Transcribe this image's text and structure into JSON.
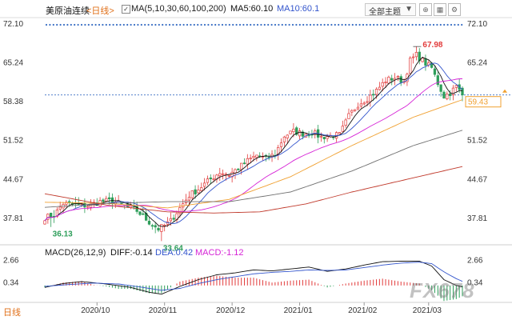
{
  "header": {
    "title": "美原油连续",
    "period_tab": "<日线>",
    "ma_label": "MA(5,10,30,60,100,200)",
    "ma5": "MA5:60.10",
    "ma10": "MA10:60.1",
    "theme_button": "全部主题",
    "check_mark": "✓"
  },
  "macd_header": {
    "label": "MACD(26,12,9)",
    "diff": "DIFF:-0.14",
    "dea": "DEA:0.42",
    "macd": "MACD:-1.12"
  },
  "bottom_tab": "日线",
  "watermark": "FX678",
  "colors": {
    "up": "#e23b3b",
    "down": "#2e9e5a",
    "ma5": "#111111",
    "ma10": "#3355cc",
    "ma30": "#d624d6",
    "ma60": "#f0a030",
    "ma100": "#707070",
    "ma200": "#c0392b",
    "diff": "#111111",
    "dea": "#3355cc",
    "price_tag": "#f0a030"
  },
  "chart_data": {
    "type": "candlestick",
    "y_ticks": [
      "72.10",
      "65.24",
      "58.38",
      "51.52",
      "44.67",
      "37.81"
    ],
    "y_tick_values": [
      72.1,
      65.24,
      58.38,
      51.52,
      44.67,
      37.81
    ],
    "ylim": [
      34.4,
      72.8
    ],
    "x_ticks": [
      "2020/10",
      "2020/11",
      "2020/12",
      "2021/01",
      "2021/02",
      "2021/03"
    ],
    "x_tick_index": [
      17,
      39,
      61,
      83,
      104,
      125
    ],
    "current_price": "59.43",
    "current_value": 59.43,
    "annotations": [
      {
        "label": "67.98",
        "value": 67.98,
        "index": 121
      },
      {
        "label": "36.13",
        "value": 36.13,
        "index": 2
      },
      {
        "label": "33.64",
        "value": 33.64,
        "index": 38
      }
    ],
    "close_path": [
      [
        0,
        37.8
      ],
      [
        3,
        38.2
      ],
      [
        6,
        40.3
      ],
      [
        10,
        40.0
      ],
      [
        14,
        39.9
      ],
      [
        18,
        40.6
      ],
      [
        22,
        40.8
      ],
      [
        26,
        39.8
      ],
      [
        30,
        39.0
      ],
      [
        34,
        37.0
      ],
      [
        37,
        35.8
      ],
      [
        39,
        36.4
      ],
      [
        41,
        37.2
      ],
      [
        44,
        39.5
      ],
      [
        47,
        41.7
      ],
      [
        50,
        42.8
      ],
      [
        54,
        44.6
      ],
      [
        57,
        45.8
      ],
      [
        60,
        45.4
      ],
      [
        63,
        46.5
      ],
      [
        66,
        47.8
      ],
      [
        69,
        48.8
      ],
      [
        72,
        48.2
      ],
      [
        75,
        49.0
      ],
      [
        78,
        52.2
      ],
      [
        81,
        53.0
      ],
      [
        84,
        52.6
      ],
      [
        87,
        52.8
      ],
      [
        90,
        52.0
      ],
      [
        93,
        52.2
      ],
      [
        96,
        52.4
      ],
      [
        99,
        55.7
      ],
      [
        102,
        57.8
      ],
      [
        105,
        58.8
      ],
      [
        108,
        60.2
      ],
      [
        111,
        62.0
      ],
      [
        114,
        62.5
      ],
      [
        117,
        61.8
      ],
      [
        119,
        65.5
      ],
      [
        121,
        66.5
      ],
      [
        124,
        65.0
      ],
      [
        126,
        64.2
      ],
      [
        128,
        61.5
      ],
      [
        130,
        59.2
      ],
      [
        132,
        59.8
      ],
      [
        134,
        60.9
      ],
      [
        136,
        59.43
      ]
    ],
    "ma_series": [
      {
        "key": "ma60",
        "points": [
          [
            0,
            40.5
          ],
          [
            20,
            40.3
          ],
          [
            40,
            39.5
          ],
          [
            60,
            41.0
          ],
          [
            80,
            45.0
          ],
          [
            100,
            50.5
          ],
          [
            120,
            55.5
          ],
          [
            136,
            58.6
          ]
        ]
      },
      {
        "key": "ma100",
        "points": [
          [
            0,
            39.6
          ],
          [
            20,
            40.3
          ],
          [
            40,
            40.6
          ],
          [
            60,
            40.6
          ],
          [
            80,
            42.3
          ],
          [
            100,
            46.0
          ],
          [
            120,
            50.5
          ],
          [
            136,
            53.2
          ]
        ]
      },
      {
        "key": "ma200",
        "points": [
          [
            0,
            42.0
          ],
          [
            20,
            40.0
          ],
          [
            40,
            38.8
          ],
          [
            55,
            38.6
          ],
          [
            70,
            38.8
          ],
          [
            85,
            40.2
          ],
          [
            100,
            42.3
          ],
          [
            120,
            44.8
          ],
          [
            136,
            46.8
          ]
        ]
      }
    ],
    "macd_ticks": [
      "2.66",
      "0.34"
    ],
    "macd_tick_values": [
      2.66,
      0.34
    ],
    "macd_ylim": [
      -1.25,
      3.2
    ],
    "macd_diff_path": [
      [
        0,
        -0.2
      ],
      [
        6,
        0.2
      ],
      [
        12,
        0.4
      ],
      [
        20,
        0.15
      ],
      [
        28,
        -0.2
      ],
      [
        34,
        -0.7
      ],
      [
        38,
        -0.9
      ],
      [
        44,
        -0.1
      ],
      [
        50,
        0.6
      ],
      [
        56,
        1.1
      ],
      [
        62,
        1.3
      ],
      [
        68,
        1.6
      ],
      [
        74,
        1.5
      ],
      [
        80,
        1.7
      ],
      [
        86,
        1.9
      ],
      [
        92,
        1.45
      ],
      [
        98,
        1.7
      ],
      [
        104,
        2.1
      ],
      [
        110,
        2.45
      ],
      [
        116,
        2.5
      ],
      [
        122,
        2.5
      ],
      [
        126,
        2.0
      ],
      [
        130,
        0.6
      ],
      [
        134,
        0.0
      ],
      [
        136,
        -0.14
      ]
    ],
    "macd_dea_path": [
      [
        0,
        -0.1
      ],
      [
        8,
        0.1
      ],
      [
        16,
        0.25
      ],
      [
        24,
        0.15
      ],
      [
        32,
        -0.2
      ],
      [
        38,
        -0.5
      ],
      [
        44,
        -0.3
      ],
      [
        50,
        0.2
      ],
      [
        56,
        0.6
      ],
      [
        62,
        0.9
      ],
      [
        68,
        1.2
      ],
      [
        74,
        1.35
      ],
      [
        80,
        1.45
      ],
      [
        86,
        1.6
      ],
      [
        92,
        1.55
      ],
      [
        98,
        1.6
      ],
      [
        104,
        1.85
      ],
      [
        110,
        2.1
      ],
      [
        116,
        2.3
      ],
      [
        122,
        2.4
      ],
      [
        126,
        2.25
      ],
      [
        130,
        1.4
      ],
      [
        134,
        0.7
      ],
      [
        136,
        0.42
      ]
    ]
  }
}
